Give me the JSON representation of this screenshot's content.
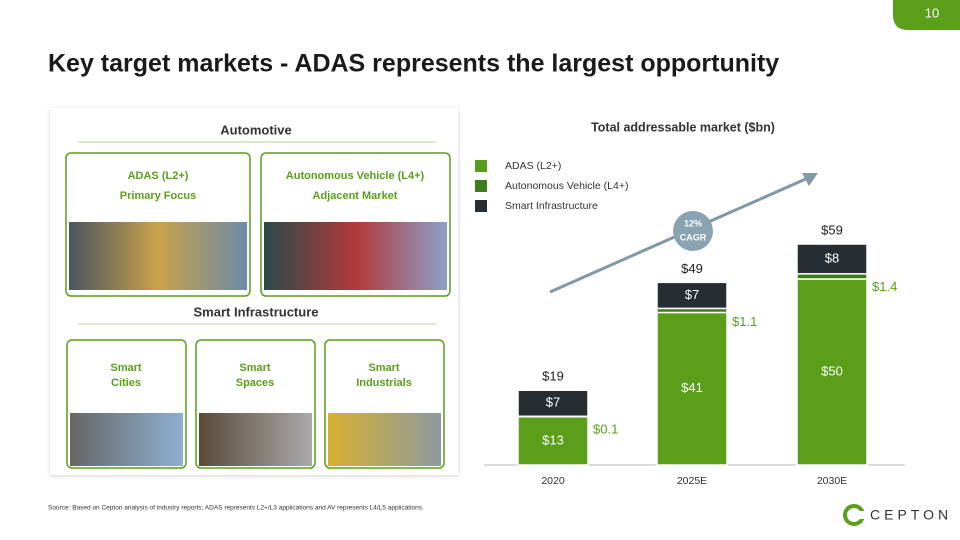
{
  "page_number": "10",
  "title": "Key target markets - ADAS represents the largest opportunity",
  "panel": {
    "automotive": {
      "heading": "Automotive",
      "cards": [
        {
          "line1": "ADAS (L2+)",
          "line2": "Primary Focus"
        },
        {
          "line1": "Autonomous Vehicle (L4+)",
          "line2": "Adjacent Market"
        }
      ]
    },
    "smart_infrastructure": {
      "heading": "Smart Infrastructure",
      "cards": [
        {
          "line1": "Smart",
          "line2": "Cities"
        },
        {
          "line1": "Smart",
          "line2": "Spaces"
        },
        {
          "line1": "Smart",
          "line2": "Industrials"
        }
      ]
    }
  },
  "footnote": "Source: Based on Cepton analysis of industry reports; ADAS represents L2+/L3 applications and AV represents L4/L5 applications.",
  "logo": "CEPTON",
  "chart_data": {
    "type": "stacked_bar",
    "title": "Total addressable market ($bn)",
    "categories": [
      "2020",
      "2025E",
      "2030E"
    ],
    "series": [
      {
        "name": "ADAS (L2+)",
        "color": "#5a9e1a",
        "values": [
          13,
          41,
          50
        ],
        "value_labels": [
          "$13",
          "$41",
          "$50"
        ]
      },
      {
        "name": "Autonomous Vehicle (L4+)",
        "color": "#3f7d1c",
        "values": [
          0.1,
          1.1,
          1.4
        ],
        "value_labels": [
          "$0.1",
          "$1.1",
          "$1.4"
        ]
      },
      {
        "name": "Smart Infrastructure",
        "color": "#262d33",
        "values": [
          7,
          7,
          8
        ],
        "value_labels": [
          "$7",
          "$7",
          "$8"
        ]
      }
    ],
    "total_labels": [
      "$19",
      "$49",
      "$59"
    ],
    "annotation": {
      "line1": "12%",
      "line2": "CAGR"
    }
  }
}
